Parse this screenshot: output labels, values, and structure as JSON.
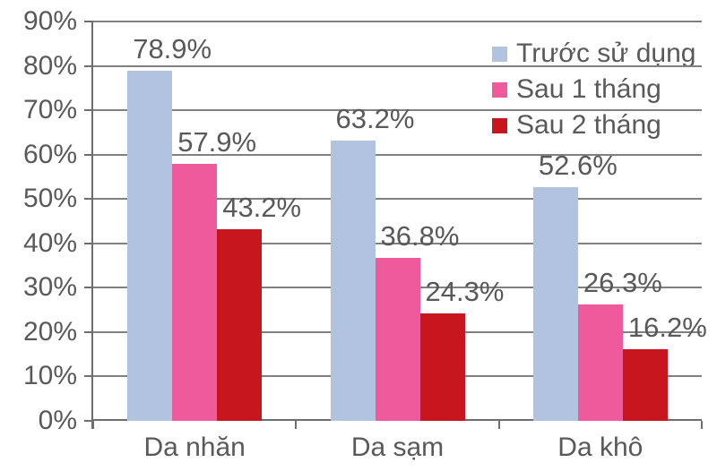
{
  "chart_data": {
    "type": "bar",
    "title": "",
    "xlabel": "",
    "ylabel": "",
    "categories": [
      "Da nhăn",
      "Da sạm",
      "Da khô"
    ],
    "series": [
      {
        "name": "Trước sử dụng",
        "color": "#B1C3DE",
        "values": [
          78.9,
          63.2,
          52.6
        ]
      },
      {
        "name": "Sau 1 tháng",
        "color": "#EE5A9B",
        "values": [
          57.9,
          36.8,
          26.3
        ]
      },
      {
        "name": "Sau 2 tháng",
        "color": "#C7161D",
        "values": [
          43.2,
          24.3,
          16.2
        ]
      }
    ],
    "data_labels": [
      [
        "78.9%",
        "63.2%",
        "52.6%"
      ],
      [
        "57.9%",
        "36.8%",
        "26.3%"
      ],
      [
        "43.2%",
        "24.3%",
        "16.2%"
      ]
    ],
    "y_ticks": [
      "0%",
      "10%",
      "20%",
      "30%",
      "40%",
      "50%",
      "60%",
      "70%",
      "80%",
      "90%"
    ],
    "ylim": [
      0,
      90
    ],
    "y_tick_step": 10,
    "grid": true,
    "legend_position": "top-right"
  },
  "styles": {
    "text_color": "#595959",
    "grid_color": "#808080",
    "axis_color": "#6E6E6E",
    "background": "#FFFFFF"
  }
}
